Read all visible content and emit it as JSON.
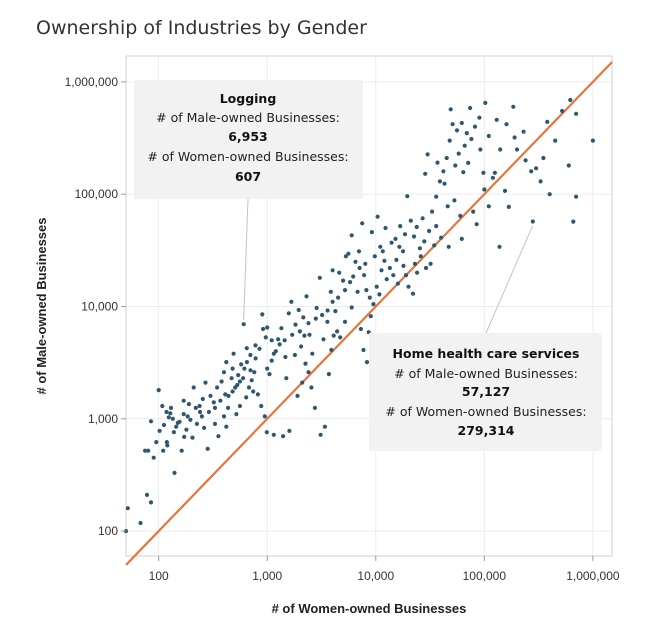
{
  "chart_data": {
    "type": "scatter",
    "title": "Ownership of Industries by Gender",
    "xlabel": "# of Women-owned Businesses",
    "ylabel": "# of Male-owned Businesses",
    "x_scale": "log",
    "y_scale": "log",
    "xlim": [
      50,
      1500000
    ],
    "ylim": [
      60,
      1700000
    ],
    "x_ticks": [
      {
        "value": 100,
        "label": "100"
      },
      {
        "value": 1000,
        "label": "1,000"
      },
      {
        "value": 10000,
        "label": "10,000"
      },
      {
        "value": 100000,
        "label": "100,000"
      },
      {
        "value": 1000000,
        "label": "1,000,000"
      }
    ],
    "y_ticks": [
      {
        "value": 100,
        "label": "100"
      },
      {
        "value": 1000,
        "label": "1,000"
      },
      {
        "value": 10000,
        "label": "10,000"
      },
      {
        "value": 100000,
        "label": "100,000"
      },
      {
        "value": 1000000,
        "label": "1,000,000"
      }
    ],
    "grid": true,
    "colors": {
      "points": "#2e5770",
      "reference_line": "#e8743b",
      "grid": "#ececec",
      "annotation_bg": "#f2f2f2"
    },
    "reference_line": {
      "label": "",
      "points": [
        [
          50,
          50
        ],
        [
          1500000,
          1500000
        ]
      ]
    },
    "annotations": [
      {
        "title": "Logging",
        "male_label": "# of Male-owned Businesses:",
        "male_value": "6,953",
        "female_label": "# of Women-owned Businesses:",
        "female_value": "607",
        "x": 607,
        "y": 6953
      },
      {
        "title": "Home health care services",
        "male_label": "# of Male-owned Businesses:",
        "male_value": "57,127",
        "female_label": "# of Women-owned Businesses:",
        "female_value": "279,314",
        "x": 279314,
        "y": 57127
      }
    ],
    "points": [
      [
        50,
        100
      ],
      [
        52,
        160
      ],
      [
        68,
        118
      ],
      [
        78,
        210
      ],
      [
        85,
        950
      ],
      [
        100,
        1800
      ],
      [
        102,
        780
      ],
      [
        119,
        620
      ],
      [
        124,
        1030
      ],
      [
        130,
        1250
      ],
      [
        145,
        850
      ],
      [
        80,
        520
      ],
      [
        95,
        620
      ],
      [
        112,
        880
      ],
      [
        128,
        1120
      ],
      [
        138,
        760
      ],
      [
        156,
        940
      ],
      [
        170,
        1450
      ],
      [
        185,
        1050
      ],
      [
        210,
        1900
      ],
      [
        238,
        1300
      ],
      [
        262,
        830
      ],
      [
        75,
        520
      ],
      [
        120,
        580
      ],
      [
        163,
        520
      ],
      [
        172,
        690
      ],
      [
        196,
        980
      ],
      [
        283,
        540
      ],
      [
        322,
        1400
      ],
      [
        345,
        1900
      ],
      [
        380,
        2150
      ],
      [
        410,
        1650
      ],
      [
        436,
        1250
      ],
      [
        470,
        2300
      ],
      [
        507,
        1900
      ],
      [
        540,
        2450
      ],
      [
        576,
        3050
      ],
      [
        616,
        2800
      ],
      [
        490,
        3800
      ],
      [
        607,
        6953
      ],
      [
        648,
        4250
      ],
      [
        702,
        2700
      ],
      [
        743,
        1750
      ],
      [
        781,
        3450
      ],
      [
        848,
        4200
      ],
      [
        917,
        6300
      ],
      [
        970,
        5300
      ],
      [
        1050,
        2500
      ],
      [
        1150,
        3800
      ],
      [
        1260,
        5100
      ],
      [
        1350,
        6400
      ],
      [
        1470,
        3550
      ],
      [
        1580,
        8700
      ],
      [
        1670,
        11000
      ],
      [
        1820,
        6900
      ],
      [
        1950,
        9300
      ],
      [
        2150,
        8000
      ],
      [
        2300,
        12300
      ],
      [
        2450,
        5600
      ],
      [
        2600,
        3800
      ],
      [
        2850,
        9700
      ],
      [
        3050,
        18000
      ],
      [
        3300,
        5100
      ],
      [
        3580,
        7300
      ],
      [
        3850,
        13500
      ],
      [
        4000,
        21000
      ],
      [
        4250,
        9100
      ],
      [
        4600,
        20000
      ],
      [
        5000,
        17000
      ],
      [
        5300,
        28000
      ],
      [
        5600,
        29500
      ],
      [
        6000,
        43000
      ],
      [
        6500,
        25000
      ],
      [
        7000,
        31000
      ],
      [
        7500,
        55000
      ],
      [
        7800,
        19000
      ],
      [
        8200,
        14000
      ],
      [
        8800,
        12000
      ],
      [
        9200,
        46000
      ],
      [
        9800,
        28000
      ],
      [
        10400,
        63000
      ],
      [
        11000,
        34000
      ],
      [
        11600,
        31000
      ],
      [
        12300,
        50000
      ],
      [
        13500,
        22000
      ],
      [
        14500,
        19000
      ],
      [
        15500,
        26000
      ],
      [
        16500,
        34000
      ],
      [
        17800,
        31000
      ],
      [
        18600,
        44000
      ],
      [
        19500,
        96000
      ],
      [
        21000,
        58000
      ],
      [
        22500,
        42000
      ],
      [
        23800,
        51000
      ],
      [
        25500,
        33000
      ],
      [
        27000,
        61000
      ],
      [
        28500,
        152000
      ],
      [
        30000,
        226000
      ],
      [
        32000,
        24000
      ],
      [
        34500,
        35000
      ],
      [
        37000,
        191000
      ],
      [
        40000,
        41000
      ],
      [
        43000,
        124000
      ],
      [
        46000,
        78000
      ],
      [
        49000,
        570000
      ],
      [
        53000,
        88000
      ],
      [
        56000,
        370000
      ],
      [
        60000,
        64000
      ],
      [
        64000,
        157000
      ],
      [
        69000,
        350000
      ],
      [
        74000,
        585000
      ],
      [
        79000,
        70000
      ],
      [
        85000,
        54000
      ],
      [
        92000,
        250000
      ],
      [
        98000,
        155000
      ],
      [
        110000,
        78000
      ],
      [
        125000,
        155000
      ],
      [
        138000,
        34000
      ],
      [
        155000,
        107000
      ],
      [
        168000,
        77000
      ],
      [
        185000,
        600000
      ],
      [
        200000,
        250000
      ],
      [
        230000,
        360000
      ],
      [
        279314,
        57127
      ],
      [
        300000,
        170000
      ],
      [
        330000,
        130000
      ],
      [
        380000,
        440000
      ],
      [
        450000,
        300000
      ],
      [
        520000,
        550000
      ],
      [
        620000,
        690000
      ],
      [
        700000,
        520000
      ],
      [
        1000000,
        300000
      ],
      [
        660000,
        57000
      ],
      [
        85,
        180
      ],
      [
        140,
        330
      ],
      [
        90,
        450
      ],
      [
        110,
        520
      ],
      [
        180,
        800
      ],
      [
        205,
        680
      ],
      [
        225,
        900
      ],
      [
        240,
        1150
      ],
      [
        255,
        1500
      ],
      [
        300,
        1600
      ],
      [
        270,
        2100
      ],
      [
        330,
        900
      ],
      [
        355,
        700
      ],
      [
        400,
        1050
      ],
      [
        420,
        850
      ],
      [
        520,
        1100
      ],
      [
        560,
        1300
      ],
      [
        640,
        1550
      ],
      [
        680,
        1900
      ],
      [
        720,
        2200
      ],
      [
        760,
        2600
      ],
      [
        820,
        1650
      ],
      [
        880,
        1300
      ],
      [
        950,
        1050
      ],
      [
        990,
        760
      ],
      [
        1150,
        720
      ],
      [
        1400,
        700
      ],
      [
        1600,
        780
      ],
      [
        1900,
        1600
      ],
      [
        2100,
        2100
      ],
      [
        2250,
        3100
      ],
      [
        2400,
        2600
      ],
      [
        2550,
        1900
      ],
      [
        2750,
        1250
      ],
      [
        3100,
        720
      ],
      [
        3400,
        850
      ],
      [
        3700,
        2500
      ],
      [
        3900,
        4100
      ],
      [
        4100,
        5500
      ],
      [
        4400,
        6000
      ],
      [
        4700,
        5300
      ],
      [
        5200,
        7300
      ],
      [
        6000,
        9800
      ],
      [
        6800,
        13500
      ],
      [
        7300,
        6300
      ],
      [
        7700,
        4100
      ],
      [
        8300,
        3200
      ],
      [
        8600,
        5900
      ],
      [
        9000,
        8200
      ],
      [
        9500,
        10500
      ],
      [
        10200,
        15000
      ],
      [
        10800,
        12800
      ],
      [
        11300,
        21000
      ],
      [
        12000,
        25500
      ],
      [
        12600,
        17500
      ],
      [
        14000,
        37000
      ],
      [
        15200,
        40000
      ],
      [
        16800,
        52000
      ],
      [
        18000,
        23000
      ],
      [
        20000,
        15000
      ],
      [
        22000,
        13000
      ],
      [
        24000,
        20000
      ],
      [
        26000,
        28000
      ],
      [
        29000,
        22000
      ],
      [
        31000,
        47000
      ],
      [
        33000,
        70000
      ],
      [
        36000,
        95000
      ],
      [
        39000,
        130000
      ],
      [
        42000,
        160000
      ],
      [
        45000,
        210000
      ],
      [
        48000,
        300000
      ],
      [
        51000,
        420000
      ],
      [
        54000,
        180000
      ],
      [
        58000,
        230000
      ],
      [
        62000,
        430000
      ],
      [
        66000,
        270000
      ],
      [
        71000,
        190000
      ],
      [
        76000,
        310000
      ],
      [
        82000,
        400000
      ],
      [
        90000,
        480000
      ],
      [
        102000,
        650000
      ],
      [
        130000,
        460000
      ],
      [
        160000,
        420000
      ],
      [
        190000,
        320000
      ],
      [
        240000,
        200000
      ],
      [
        270000,
        160000
      ],
      [
        350000,
        210000
      ],
      [
        400000,
        100000
      ],
      [
        110000,
        330000
      ],
      [
        140000,
        250000
      ],
      [
        120000,
        140000
      ],
      [
        100000,
        110000
      ],
      [
        600000,
        180000
      ],
      [
        700000,
        95000
      ],
      [
        62000,
        40000
      ],
      [
        47000,
        34000
      ],
      [
        36000,
        52000
      ],
      [
        28000,
        38000
      ],
      [
        23000,
        24000
      ],
      [
        19000,
        19000
      ],
      [
        16000,
        16000
      ],
      [
        150,
        920
      ],
      [
        135,
        1000
      ],
      [
        118,
        1150
      ],
      [
        108,
        1300
      ],
      [
        170,
        1100
      ],
      [
        190,
        1350
      ],
      [
        220,
        1250
      ],
      [
        250,
        1050
      ],
      [
        290,
        1150
      ],
      [
        330,
        1250
      ],
      [
        370,
        1450
      ],
      [
        440,
        1600
      ],
      [
        480,
        1750
      ],
      [
        530,
        2000
      ],
      [
        600,
        2300
      ],
      [
        1000,
        2800
      ],
      [
        1100,
        3300
      ],
      [
        1200,
        4000
      ],
      [
        1300,
        4600
      ],
      [
        1450,
        5000
      ],
      [
        1700,
        5600
      ],
      [
        2000,
        6000
      ],
      [
        2400,
        7100
      ],
      [
        2800,
        7800
      ],
      [
        3200,
        8400
      ],
      [
        3600,
        9200
      ],
      [
        4000,
        11000
      ],
      [
        4500,
        12000
      ],
      [
        5200,
        14000
      ],
      [
        5800,
        16500
      ],
      [
        6200,
        18500
      ],
      [
        7100,
        22000
      ],
      [
        8000,
        24000
      ],
      [
        900,
        8500
      ],
      [
        1000,
        6500
      ],
      [
        1100,
        5000
      ],
      [
        780,
        4500
      ],
      [
        700,
        3700
      ],
      [
        650,
        3200
      ],
      [
        1500,
        2300
      ],
      [
        1800,
        3700
      ],
      [
        2050,
        4400
      ],
      [
        2200,
        5500
      ],
      [
        400,
        2600
      ],
      [
        420,
        3200
      ],
      [
        480,
        2800
      ],
      [
        560,
        2150
      ]
    ]
  }
}
